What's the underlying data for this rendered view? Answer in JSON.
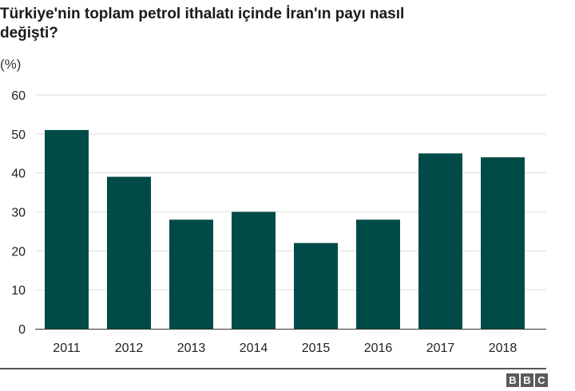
{
  "title_line1": "Türkiye'nin toplam petrol ithalatı içinde İran'ın payı nasıl",
  "title_line2": "değişti?",
  "unit_label": "(%)",
  "brand": [
    "B",
    "B",
    "C"
  ],
  "colors": {
    "bar": "#004b47",
    "grid": "#dddddd",
    "axis": "#333333",
    "text": "#222222"
  },
  "chart_data": {
    "type": "bar",
    "title": "Türkiye'nin toplam petrol ithalatı içinde İran'ın payı nasıl değişti?",
    "ylabel": "(%)",
    "xlabel": "",
    "categories": [
      "2011",
      "2012",
      "2013",
      "2014",
      "2015",
      "2016",
      "2017",
      "2018"
    ],
    "values": [
      51,
      39,
      28,
      30,
      22,
      28,
      45,
      44
    ],
    "ylim": [
      0,
      60
    ],
    "yticks": [
      0,
      10,
      20,
      30,
      40,
      50,
      60
    ],
    "grid": true,
    "legend": "none"
  }
}
